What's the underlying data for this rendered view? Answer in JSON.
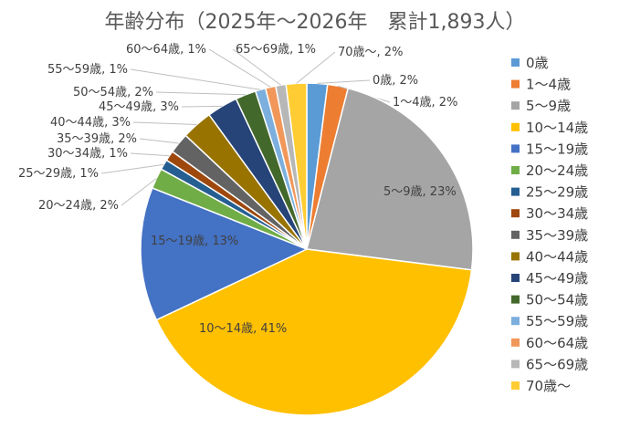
{
  "chart_data": {
    "type": "pie",
    "title": "年齢分布（2025年～2026年　累計1,893人）",
    "unit": "%",
    "legend_position": "right",
    "start": "top, clockwise",
    "categories": [
      "0歳",
      "1～4歳",
      "5～9歳",
      "10～14歳",
      "15～19歳",
      "20～24歳",
      "25～29歳",
      "30～34歳",
      "35～39歳",
      "40～44歳",
      "45～49歳",
      "50～54歳",
      "55～59歳",
      "60～64歳",
      "65～69歳",
      "70歳～"
    ],
    "values": [
      2,
      2,
      23,
      41,
      13,
      2,
      1,
      1,
      2,
      3,
      3,
      2,
      1,
      1,
      1,
      2
    ],
    "data_labels": [
      "0歳, 2%",
      "1～4歳, 2%",
      "5～9歳, 23%",
      "10～14歳, 41%",
      "15～19歳, 13%",
      "20～24歳, 2%",
      "25～29歳, 1%",
      "30～34歳, 1%",
      "35～39歳, 2%",
      "40～44歳, 3%",
      "45～49歳, 3%",
      "50～54歳, 2%",
      "55～59歳, 1%",
      "60～64歳, 1%",
      "65～69歳, 1%",
      "70歳～, 2%"
    ],
    "colors": [
      "#5B9BD5",
      "#ED7D31",
      "#A5A5A5",
      "#FFC000",
      "#4472C4",
      "#70AD47",
      "#255E91",
      "#9E480E",
      "#636363",
      "#997300",
      "#264478",
      "#43682B",
      "#7CAFDD",
      "#F1975A",
      "#B7B7B7",
      "#FFCD33"
    ]
  }
}
